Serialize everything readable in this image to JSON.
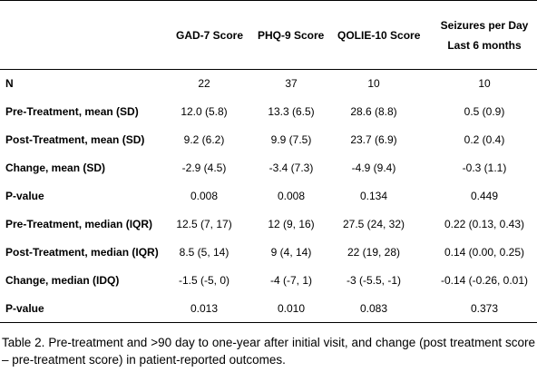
{
  "table": {
    "headers": {
      "gad": "GAD-7  Score",
      "phq": "PHQ-9  Score",
      "qol": "QOLIE-10  Score",
      "seizures_line1": "Seizures per Day",
      "seizures_line2": "Last 6 months"
    },
    "rows": [
      {
        "label": "N",
        "gad": "22",
        "phq": "37",
        "qol": "10",
        "sz": "10"
      },
      {
        "label": "Pre-Treatment,  mean (SD)",
        "gad": "12.0 (5.8)",
        "phq": "13.3 (6.5)",
        "qol": "28.6 (8.8)",
        "sz": "0.5 (0.9)"
      },
      {
        "label": "Post-Treatment,  mean (SD)",
        "gad": "9.2 (6.2)",
        "phq": "9.9 (7.5)",
        "qol": "23.7 (6.9)",
        "sz": "0.2 (0.4)"
      },
      {
        "label": "Change, mean (SD)",
        "gad": "-2.9 (4.5)",
        "phq": "-3.4 (7.3)",
        "qol": "-4.9 (9.4)",
        "sz": "-0.3 (1.1)"
      },
      {
        "label": "P-value",
        "gad": "0.008",
        "phq": "0.008",
        "qol": "0.134",
        "sz": "0.449"
      },
      {
        "label": "Pre-Treatment,  median (IQR)",
        "gad": "12.5 (7, 17)",
        "phq": "12 (9, 16)",
        "qol": "27.5 (24, 32)",
        "sz": "0.22 (0.13, 0.43)"
      },
      {
        "label": "Post-Treatment,  median (IQR)",
        "gad": "8.5 (5, 14)",
        "phq": "9 (4, 14)",
        "qol": "22 (19, 28)",
        "sz": "0.14 (0.00, 0.25)"
      },
      {
        "label": "Change,  median (IDQ)",
        "gad": "-1.5 (-5, 0)",
        "phq": "-4 (-7, 1)",
        "qol": "-3 (-5.5, -1)",
        "sz": "-0.14 (-0.26, 0.01)"
      },
      {
        "label": "P-value",
        "gad": "0.013",
        "phq": "0.010",
        "qol": "0.083",
        "sz": "0.373"
      }
    ]
  },
  "caption": "Table 2. Pre-treatment and >90 day to one-year after initial visit, and change (post treatment score – pre-treatment score) in patient-reported outcomes."
}
